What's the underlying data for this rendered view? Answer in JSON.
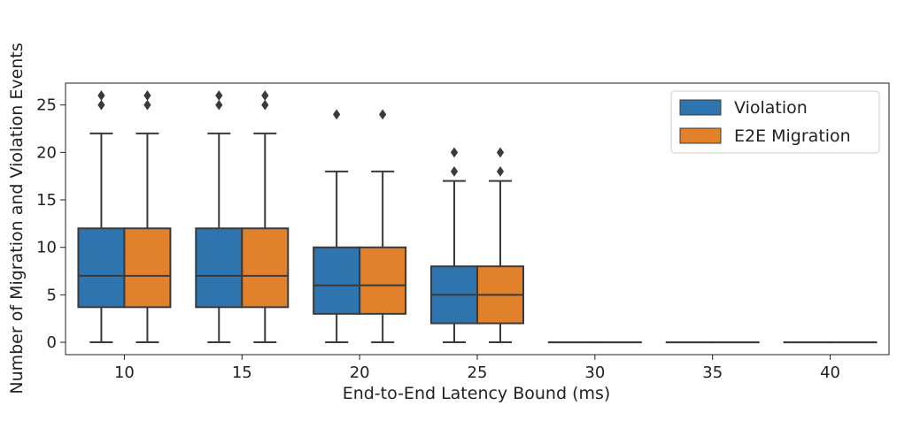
{
  "chart_data": {
    "type": "box",
    "title": "",
    "xlabel": "End-to-End Latency Bound (ms)",
    "ylabel": "Number of Migration and Violation Events",
    "categories": [
      "10",
      "15",
      "20",
      "25",
      "30",
      "35",
      "40"
    ],
    "ylim": [
      -1.3,
      27.3
    ],
    "yticks": [
      0,
      5,
      10,
      15,
      20,
      25
    ],
    "grid": false,
    "legend_position": "upper right",
    "series": [
      {
        "name": "Violation",
        "color": "#2e75b0",
        "boxes": [
          {
            "whislo": 0,
            "q1": 3.7,
            "med": 7,
            "q3": 12,
            "whishi": 22,
            "fliers": [
              25,
              26
            ]
          },
          {
            "whislo": 0,
            "q1": 3.7,
            "med": 7,
            "q3": 12,
            "whishi": 22,
            "fliers": [
              25,
              26
            ]
          },
          {
            "whislo": 0,
            "q1": 3,
            "med": 6,
            "q3": 10,
            "whishi": 18,
            "fliers": [
              24
            ]
          },
          {
            "whislo": 0,
            "q1": 2,
            "med": 5,
            "q3": 8,
            "whishi": 17,
            "fliers": [
              18,
              20
            ]
          },
          {
            "whislo": 0,
            "q1": 0,
            "med": 0,
            "q3": 0,
            "whishi": 0,
            "fliers": []
          },
          {
            "whislo": 0,
            "q1": 0,
            "med": 0,
            "q3": 0,
            "whishi": 0,
            "fliers": []
          },
          {
            "whislo": 0,
            "q1": 0,
            "med": 0,
            "q3": 0,
            "whishi": 0,
            "fliers": []
          }
        ]
      },
      {
        "name": "E2E Migration",
        "color": "#e1812c",
        "boxes": [
          {
            "whislo": 0,
            "q1": 3.7,
            "med": 7,
            "q3": 12,
            "whishi": 22,
            "fliers": [
              25,
              26
            ]
          },
          {
            "whislo": 0,
            "q1": 3.7,
            "med": 7,
            "q3": 12,
            "whishi": 22,
            "fliers": [
              25,
              26
            ]
          },
          {
            "whislo": 0,
            "q1": 3,
            "med": 6,
            "q3": 10,
            "whishi": 18,
            "fliers": [
              24
            ]
          },
          {
            "whislo": 0,
            "q1": 2,
            "med": 5,
            "q3": 8,
            "whishi": 17,
            "fliers": [
              18,
              20
            ]
          },
          {
            "whislo": 0,
            "q1": 0,
            "med": 0,
            "q3": 0,
            "whishi": 0,
            "fliers": []
          },
          {
            "whislo": 0,
            "q1": 0,
            "med": 0,
            "q3": 0,
            "whishi": 0,
            "fliers": []
          },
          {
            "whislo": 0,
            "q1": 0,
            "med": 0,
            "q3": 0,
            "whishi": 0,
            "fliers": []
          }
        ]
      }
    ]
  }
}
